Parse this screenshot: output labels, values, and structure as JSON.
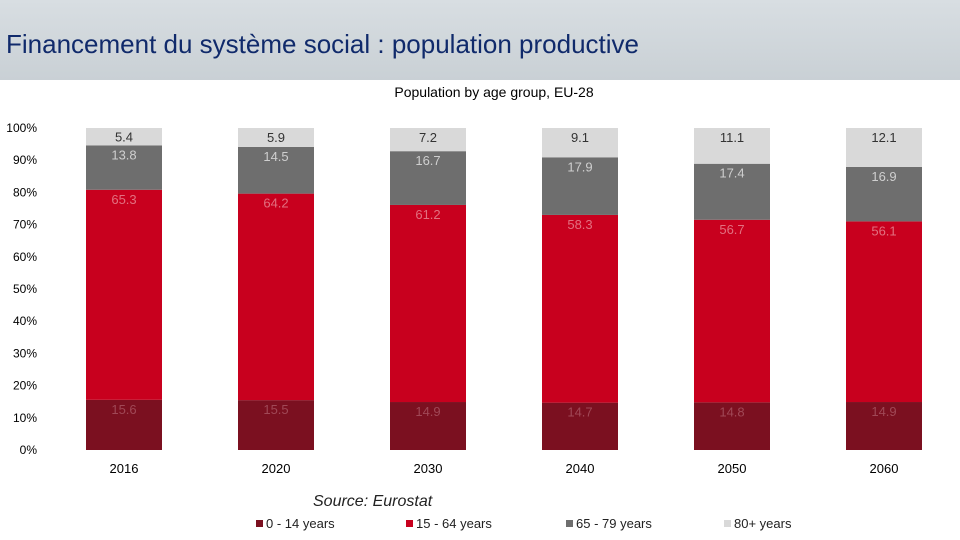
{
  "banner": {
    "title": "Financement du système social : population productive"
  },
  "chart_data": {
    "type": "bar",
    "stacked": true,
    "title": "Population by age group, EU-28",
    "categories": [
      "2016",
      "2020",
      "2030",
      "2040",
      "2050",
      "2060"
    ],
    "series": [
      {
        "name": "0 - 14 years",
        "color": "#7b1020",
        "labelColor": "#a04856",
        "values": [
          15.6,
          15.5,
          14.9,
          14.7,
          14.8,
          14.9
        ]
      },
      {
        "name": "15 - 64 years",
        "color": "#c8001e",
        "labelColor": "#e27080",
        "values": [
          65.3,
          64.2,
          61.2,
          58.3,
          56.7,
          56.1
        ]
      },
      {
        "name": "65 - 79 years",
        "color": "#6e6e6e",
        "labelColor": "#cfcfcf",
        "values": [
          13.8,
          14.5,
          16.7,
          17.9,
          17.4,
          16.9
        ]
      },
      {
        "name": "80+ years",
        "color": "#d9d9d9",
        "labelColor": "#333333",
        "values": [
          5.4,
          5.9,
          7.2,
          9.1,
          11.1,
          12.1
        ]
      }
    ],
    "yticks": [
      "0%",
      "10%",
      "20%",
      "30%",
      "40%",
      "50%",
      "60%",
      "70%",
      "80%",
      "90%",
      "100%"
    ],
    "ylim": [
      0,
      100
    ],
    "xlabel": "",
    "ylabel": "",
    "legend": "bottom",
    "source": "Source: Eurostat"
  }
}
